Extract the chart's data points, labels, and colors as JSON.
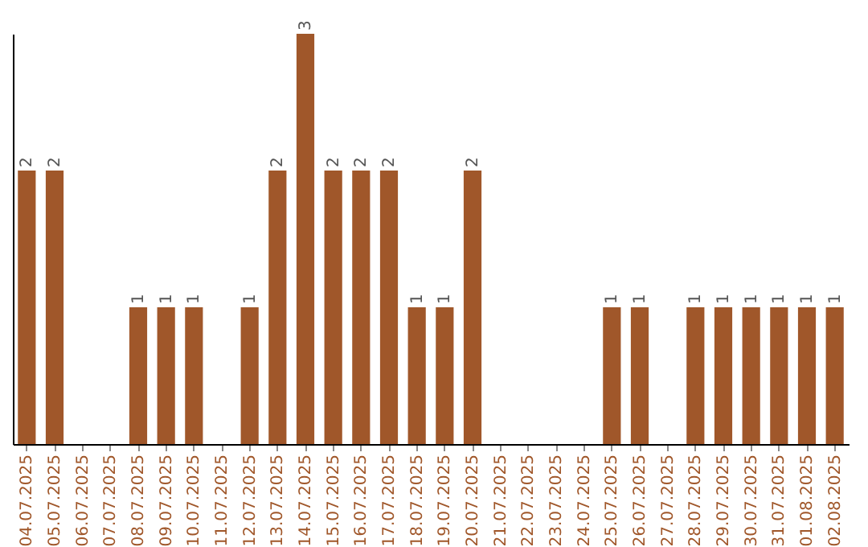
{
  "chart_data": {
    "type": "bar",
    "categories": [
      "04.07.2025",
      "05.07.2025",
      "06.07.2025",
      "07.07.2025",
      "08.07.2025",
      "09.07.2025",
      "10.07.2025",
      "11.07.2025",
      "12.07.2025",
      "13.07.2025",
      "14.07.2025",
      "15.07.2025",
      "16.07.2025",
      "17.07.2025",
      "18.07.2025",
      "19.07.2025",
      "20.07.2025",
      "21.07.2025",
      "22.07.2025",
      "23.07.2025",
      "24.07.2025",
      "25.07.2025",
      "26.07.2025",
      "27.07.2025",
      "28.07.2025",
      "29.07.2025",
      "30.07.2025",
      "31.07.2025",
      "01.08.2025",
      "02.08.2025"
    ],
    "values": [
      2,
      2,
      0,
      0,
      1,
      1,
      1,
      0,
      1,
      2,
      3,
      2,
      2,
      2,
      1,
      1,
      2,
      0,
      0,
      0,
      0,
      1,
      1,
      0,
      1,
      1,
      1,
      1,
      1,
      1
    ],
    "value_labels": [
      "2",
      "2",
      null,
      null,
      "1",
      "1",
      "1",
      null,
      "1",
      "2",
      "3",
      "2",
      "2",
      "2",
      "1",
      "1",
      "2",
      null,
      null,
      null,
      null,
      "1",
      "1",
      null,
      "1",
      "1",
      "1",
      "1",
      "1",
      "1"
    ],
    "color": "#a0572a",
    "tick_labels": "x",
    "grid": false
  }
}
